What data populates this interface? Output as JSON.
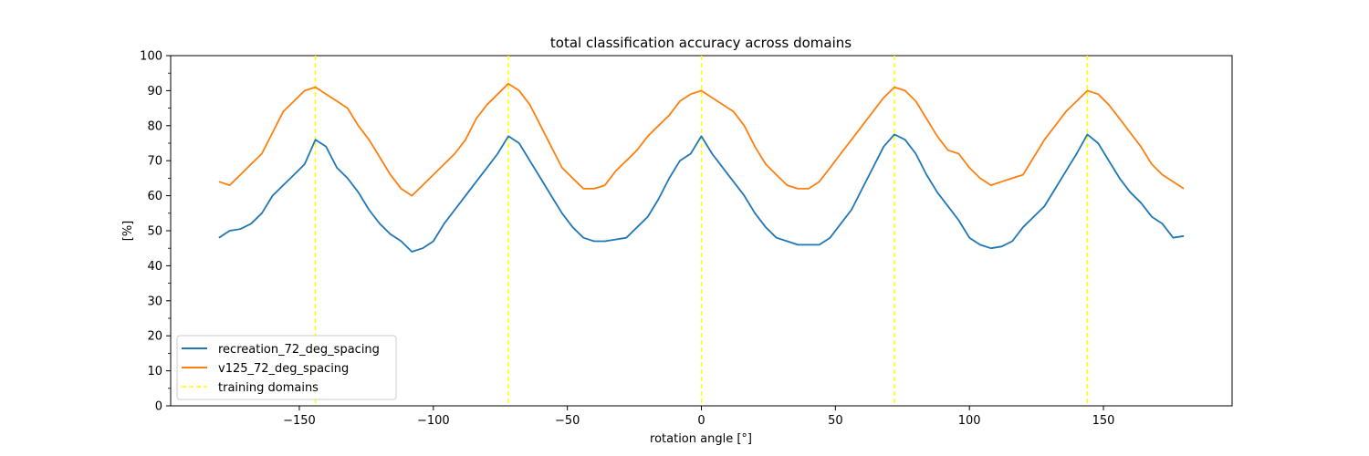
{
  "chart_data": {
    "type": "line",
    "title": "total classification accuracy across domains",
    "xlabel": "rotation angle [°]",
    "ylabel": "[%]",
    "xlim": [
      -198,
      198
    ],
    "ylim": [
      0,
      100
    ],
    "xticks": [
      -150,
      -100,
      -50,
      0,
      50,
      100,
      150
    ],
    "xtick_labels": [
      "−150",
      "−100",
      "−50",
      "0",
      "50",
      "100",
      "150"
    ],
    "yticks": [
      0,
      10,
      20,
      30,
      40,
      50,
      60,
      70,
      80,
      90,
      100
    ],
    "ytick_labels": [
      "0",
      "10",
      "20",
      "30",
      "40",
      "50",
      "60",
      "70",
      "80",
      "90",
      "100"
    ],
    "grid": false,
    "legend_position": "lower-left",
    "series": [
      {
        "name": "recreation_72_deg_spacing",
        "color": "#1f77b4",
        "x": [
          -180,
          -176,
          -172,
          -168,
          -164,
          -160,
          -156,
          -152,
          -148,
          -144,
          -140,
          -136,
          -132,
          -128,
          -124,
          -120,
          -116,
          -112,
          -108,
          -104,
          -100,
          -96,
          -92,
          -88,
          -84,
          -80,
          -76,
          -72,
          -68,
          -64,
          -60,
          -56,
          -52,
          -48,
          -44,
          -40,
          -36,
          -32,
          -28,
          -24,
          -20,
          -16,
          -12,
          -8,
          -4,
          0,
          4,
          8,
          12,
          16,
          20,
          24,
          28,
          32,
          36,
          40,
          44,
          48,
          52,
          56,
          60,
          64,
          68,
          72,
          76,
          80,
          84,
          88,
          92,
          96,
          100,
          104,
          108,
          112,
          116,
          120,
          124,
          128,
          132,
          136,
          140,
          144,
          148,
          152,
          156,
          160,
          164,
          168,
          172,
          176,
          180
        ],
        "values": [
          48,
          50,
          50.5,
          52,
          55,
          60,
          63,
          66,
          69,
          76,
          74,
          68,
          65,
          61,
          56,
          52,
          49,
          47,
          44,
          45,
          47,
          52,
          56,
          60,
          64,
          68,
          72,
          77,
          75,
          70,
          65,
          60,
          55,
          51,
          48,
          47,
          47,
          47.5,
          48,
          51,
          54,
          59,
          65,
          70,
          72,
          77,
          72,
          68,
          64,
          60,
          55,
          51,
          48,
          47,
          46,
          46,
          46,
          48,
          52,
          56,
          62,
          68,
          74,
          77.5,
          76,
          72,
          66,
          61,
          57,
          53,
          48,
          46,
          45,
          45.5,
          47,
          51,
          54,
          57,
          62,
          67,
          72,
          77.5,
          75,
          70,
          65,
          61,
          58,
          54,
          52,
          48,
          48.5
        ]
      },
      {
        "name": "v125_72_deg_spacing",
        "color": "#ff7f0e",
        "x": [
          -180,
          -176,
          -172,
          -168,
          -164,
          -160,
          -156,
          -152,
          -148,
          -144,
          -140,
          -136,
          -132,
          -128,
          -124,
          -120,
          -116,
          -112,
          -108,
          -104,
          -100,
          -96,
          -92,
          -88,
          -84,
          -80,
          -76,
          -72,
          -68,
          -64,
          -60,
          -56,
          -52,
          -48,
          -44,
          -40,
          -36,
          -32,
          -28,
          -24,
          -20,
          -16,
          -12,
          -8,
          -4,
          0,
          4,
          8,
          12,
          16,
          20,
          24,
          28,
          32,
          36,
          40,
          44,
          48,
          52,
          56,
          60,
          64,
          68,
          72,
          76,
          80,
          84,
          88,
          92,
          96,
          100,
          104,
          108,
          112,
          116,
          120,
          124,
          128,
          132,
          136,
          140,
          144,
          148,
          152,
          156,
          160,
          164,
          168,
          172,
          176,
          180
        ],
        "values": [
          64,
          63,
          66,
          69,
          72,
          78,
          84,
          87,
          90,
          91,
          89,
          87,
          85,
          80,
          76,
          71,
          66,
          62,
          60,
          63,
          66,
          69,
          72,
          76,
          82,
          86,
          89,
          92,
          90,
          86,
          80,
          74,
          68,
          65,
          62,
          62,
          63,
          67,
          70,
          73,
          77,
          80,
          83,
          87,
          89,
          90,
          88,
          86,
          84,
          80,
          74,
          69,
          66,
          63,
          62,
          62,
          64,
          68,
          72,
          76,
          80,
          84,
          88,
          91,
          90,
          87,
          82,
          77,
          73,
          72,
          68,
          65,
          63,
          64,
          65,
          66,
          71,
          76,
          80,
          84,
          87,
          90,
          89,
          86,
          82,
          78,
          74,
          69,
          66,
          64,
          62
        ]
      },
      {
        "name": "training domains",
        "color": "#ffff00",
        "style": "dashed",
        "vlines": [
          -144,
          -72,
          0,
          72,
          144
        ]
      }
    ]
  }
}
